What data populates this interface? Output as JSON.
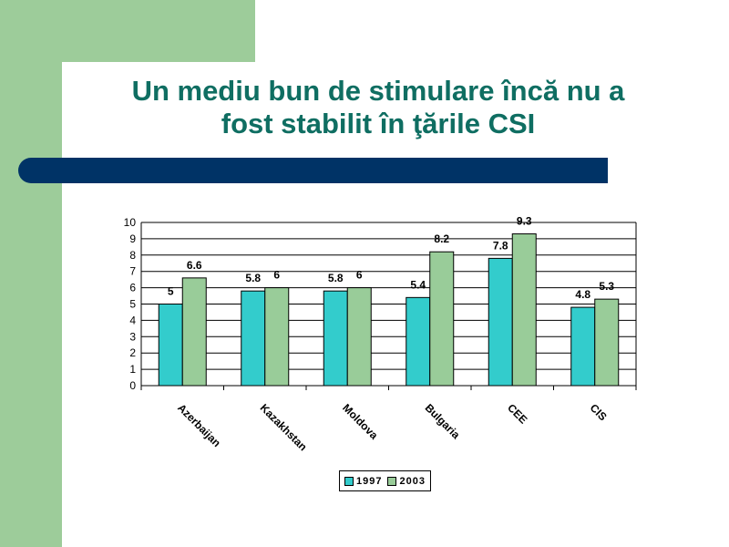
{
  "slide": {
    "title_line1": "Un mediu bun de stimulare încă nu a",
    "title_line2": "fost stabilit în ţările CSI"
  },
  "colors": {
    "background_accent": "#9dcc9a",
    "title": "#0f6e62",
    "band": "#003366",
    "series_1997": "#33cccc",
    "series_2003": "#99cc99"
  },
  "chart_data": {
    "type": "bar",
    "title": "",
    "xlabel": "",
    "ylabel": "",
    "categories": [
      "Azerbaijan",
      "Kazakhstan",
      "Moldova",
      "Bulgaria",
      "CEE",
      "CIS"
    ],
    "series": [
      {
        "name": "1997",
        "values": [
          5,
          5.8,
          5.8,
          5.4,
          7.8,
          4.8
        ],
        "labels": [
          "5",
          "5.8",
          "5.8",
          "5.4",
          "7.8",
          "4.8"
        ]
      },
      {
        "name": "2003",
        "values": [
          6.6,
          6,
          6,
          8.2,
          9.3,
          5.3
        ],
        "labels": [
          "6.6",
          "6",
          "6",
          "8.2",
          "9.3",
          "5.3"
        ]
      }
    ],
    "ylim": [
      0,
      10
    ],
    "yticks": [
      "0",
      "1",
      "2",
      "3",
      "4",
      "5",
      "6",
      "7",
      "8",
      "9",
      "10"
    ],
    "grid": true,
    "legend_position": "bottom"
  }
}
